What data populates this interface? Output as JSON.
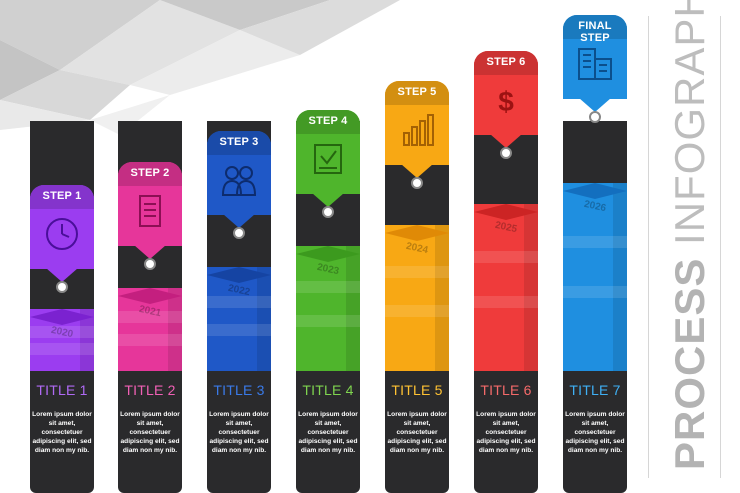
{
  "heading": {
    "bold_word": "PROCESS",
    "light_word": "INFOGRAPHIC"
  },
  "body_text": "Lorem ipsum dolor sit amet, consectetuer adipiscing elit, sed diam non my nib.",
  "steps": [
    {
      "badge": "STEP 1",
      "title": "TITLE 1",
      "year": "2020",
      "color": "#9b3df0",
      "dark": "#7b22d0",
      "title_color": "#b06af5",
      "icon": "clock-icon",
      "level": 1
    },
    {
      "badge": "STEP 2",
      "title": "TITLE 2",
      "year": "2021",
      "color": "#e6369a",
      "dark": "#c41f7f",
      "title_color": "#f060b5",
      "icon": "document-icon",
      "level": 2
    },
    {
      "badge": "STEP 3",
      "title": "TITLE 3",
      "year": "2022",
      "color": "#1f58c7",
      "dark": "#1544a3",
      "title_color": "#3a7ae8",
      "icon": "users-icon",
      "level": 3
    },
    {
      "badge": "STEP 4",
      "title": "TITLE 4",
      "year": "2023",
      "color": "#4fb52c",
      "dark": "#3c9a1e",
      "title_color": "#7fd44f",
      "icon": "checklist-icon",
      "level": 4
    },
    {
      "badge": "STEP 5",
      "title": "TITLE 5",
      "year": "2024",
      "color": "#f8a814",
      "dark": "#e08a06",
      "title_color": "#ffc233",
      "icon": "bar-chart-icon",
      "level": 5
    },
    {
      "badge": "STEP 6",
      "title": "TITLE 6",
      "year": "2025",
      "color": "#ef3b3b",
      "dark": "#cc2424",
      "title_color": "#f56a6a",
      "icon": "dollar-icon",
      "level": 6
    },
    {
      "badge": "FINAL STEP",
      "title": "TITLE 7",
      "year": "2026",
      "color": "#1f8fe0",
      "dark": "#136fbf",
      "title_color": "#3fb0f5",
      "icon": "buildings-icon",
      "level": 7
    }
  ]
}
